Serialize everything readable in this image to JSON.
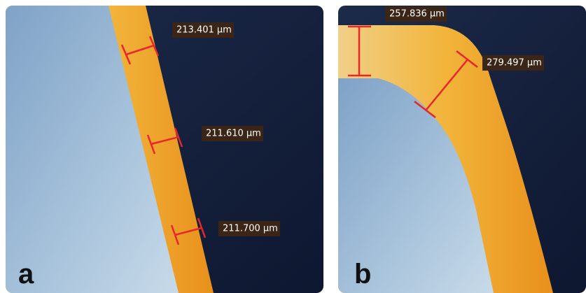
{
  "panels": [
    {
      "label": "a",
      "measurements": [
        "213.401 µm",
        "211.610 µm",
        "211.700 µm"
      ]
    },
    {
      "label": "b",
      "measurements": [
        "257.836 µm",
        "279.497 µm"
      ]
    }
  ]
}
